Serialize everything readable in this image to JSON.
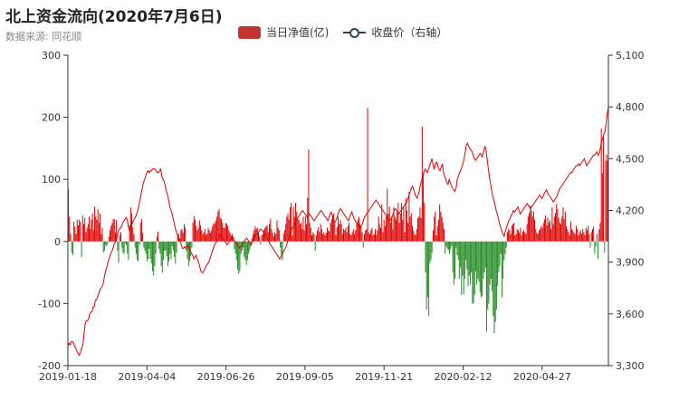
{
  "title": "北上资金流向(2020年7月6日)",
  "subtitle": "数据来源: 同花顺",
  "legend": {
    "bar_label": "当日净值(亿)",
    "line_label": "收盘价（右轴）"
  },
  "chart_data": {
    "type": "bar",
    "title": "北上资金流向(2020年7月6日)",
    "x_labels": [
      "2019-01-18",
      "2019-04-04",
      "2019-06-26",
      "2019-09-05",
      "2019-11-21",
      "2020-02-12",
      "2020-04-27"
    ],
    "y_left": {
      "min": -200,
      "max": 300,
      "ticks": [
        "300",
        "200",
        "100",
        "0",
        "-100",
        "-200"
      ]
    },
    "y_right": {
      "min": 3300,
      "max": 5100,
      "ticks": [
        "5,100",
        "4,800",
        "4,500",
        "4,200",
        "3,900",
        "3,600",
        "3,300"
      ]
    },
    "series": [
      {
        "name": "当日净值(亿)",
        "type": "bar",
        "positive_color": "#dd0000",
        "negative_color": "#228b22",
        "values": [
          84,
          40,
          12,
          -18,
          -22,
          32,
          24,
          12,
          35,
          26,
          35,
          32,
          -25,
          42,
          28,
          38,
          15,
          22,
          28,
          40,
          20,
          35,
          45,
          18,
          56,
          40,
          35,
          52,
          30,
          45,
          12,
          22,
          -18,
          -15,
          -6,
          -8,
          -3,
          8,
          18,
          25,
          30,
          36,
          36,
          15,
          35,
          -15,
          -35,
          10,
          15,
          -10,
          -18,
          -20,
          -3,
          -6,
          -20,
          -30,
          26,
          55,
          45,
          23,
          12,
          -10,
          -20,
          -30,
          -32,
          -5,
          30,
          36,
          14,
          -10,
          -15,
          -20,
          -32,
          -28,
          -12,
          -28,
          -35,
          -48,
          -55,
          -40,
          -20,
          8,
          16,
          -12,
          -20,
          -40,
          -50,
          -30,
          -15,
          -15,
          -24,
          -40,
          -32,
          -20,
          -28,
          -8,
          -14,
          -25,
          -36,
          -18,
          10,
          13,
          5,
          18,
          20,
          14,
          28,
          22,
          -15,
          -28,
          -40,
          -32,
          -24,
          -10,
          30,
          41,
          35,
          25,
          18,
          22,
          34,
          26,
          18,
          12,
          15,
          20,
          10,
          12,
          22,
          18,
          14,
          18,
          25,
          30,
          28,
          34,
          40,
          48,
          52,
          38,
          36,
          30,
          22,
          22,
          30,
          28,
          25,
          18,
          14,
          10,
          12,
          8,
          -12,
          -20,
          -30,
          -45,
          -52,
          -48,
          -20,
          -15,
          -10,
          -25,
          -30,
          -38,
          -30,
          -20,
          -14,
          -8,
          5,
          12,
          18,
          25,
          20,
          22,
          14,
          8,
          -5,
          10,
          12,
          18,
          22,
          24,
          26,
          15,
          28,
          36,
          20,
          14,
          8,
          15,
          12,
          34,
          22,
          18,
          -10,
          -22,
          -30,
          12,
          18,
          28,
          40,
          45,
          35,
          55,
          62,
          10,
          56,
          40,
          62,
          48,
          36,
          35,
          28,
          30,
          20,
          40,
          18,
          40,
          28,
          70,
          148,
          30,
          22,
          10,
          15,
          12,
          -15,
          10,
          18,
          23,
          15,
          28,
          20,
          12,
          15,
          10,
          14,
          22,
          18,
          16,
          30,
          36,
          42,
          45,
          30,
          10,
          23,
          40,
          28,
          35,
          28,
          12,
          20,
          18,
          22,
          15,
          25,
          30,
          12,
          10,
          15,
          20,
          12,
          18,
          30,
          35,
          40,
          28,
          25,
          15,
          -10,
          12,
          18,
          20,
          215,
          15,
          12,
          18,
          22,
          10,
          12,
          20,
          10,
          18,
          40,
          28,
          22,
          60,
          15,
          35,
          25,
          40,
          85,
          45,
          56,
          30,
          40,
          20,
          55,
          40,
          35,
          48,
          62,
          30,
          45,
          62,
          35,
          55,
          15,
          70,
          50,
          30,
          80,
          40,
          45,
          25,
          18,
          12,
          10,
          20,
          38,
          40,
          55,
          38,
          185,
          110,
          62,
          -50,
          -110,
          -90,
          -120,
          -35,
          -30,
          -18,
          18,
          40,
          48,
          10,
          25,
          35,
          60,
          48,
          40,
          30,
          20,
          -20,
          -8,
          -12,
          -14,
          -20,
          -12,
          -7,
          -50,
          -70,
          -60,
          -10,
          -22,
          -30,
          -60,
          -42,
          -86,
          -55,
          -85,
          -60,
          -30,
          -45,
          -72,
          -55,
          -70,
          -50,
          -100,
          -100,
          -86,
          -48,
          -70,
          -60,
          -65,
          -82,
          -90,
          -88,
          -60,
          -50,
          -42,
          -145,
          -110,
          -100,
          -70,
          -60,
          -80,
          -120,
          -148,
          -130,
          -110,
          -72,
          -50,
          -40,
          -20,
          -90,
          -60,
          -30,
          -20,
          -10,
          15,
          20,
          18,
          12,
          25,
          28,
          30,
          10,
          12,
          20,
          18,
          14,
          22,
          10,
          16,
          18,
          15,
          12,
          28,
          40,
          46,
          58,
          50,
          40,
          48,
          35,
          20,
          14,
          12,
          18,
          20,
          25,
          22,
          30,
          36,
          42,
          26,
          38,
          30,
          34,
          20,
          55,
          28,
          40,
          46,
          60,
          52,
          38,
          30,
          28,
          40,
          55,
          36,
          48,
          25,
          20,
          15,
          10,
          32,
          20,
          18,
          14,
          12,
          25,
          20,
          10,
          15,
          18,
          12,
          20,
          15,
          10,
          22,
          18,
          25,
          12,
          -10,
          15,
          20,
          24,
          -20,
          -8,
          12,
          -28,
          20,
          30,
          182,
          110,
          170,
          -18,
          130,
          140,
          130
        ]
      },
      {
        "name": "收盘价（右轴）",
        "type": "line",
        "color": "#dd0000",
        "values": [
          3410,
          3430,
          3420,
          3440,
          3440,
          3430,
          3410,
          3400,
          3380,
          3370,
          3360,
          3380,
          3400,
          3420,
          3480,
          3540,
          3560,
          3560,
          3570,
          3600,
          3610,
          3610,
          3640,
          3640,
          3680,
          3680,
          3700,
          3720,
          3740,
          3750,
          3760,
          3780,
          3820,
          3850,
          3870,
          3900,
          3920,
          3940,
          3960,
          3970,
          4000,
          4010,
          4030,
          4040,
          4080,
          4090,
          4100,
          4110,
          4130,
          4140,
          4150,
          4160,
          4140,
          4100,
          4080,
          4110,
          4120,
          4140,
          4150,
          4160,
          4180,
          4200,
          4230,
          4260,
          4300,
          4330,
          4360,
          4380,
          4400,
          4420,
          4430,
          4420,
          4430,
          4430,
          4440,
          4440,
          4440,
          4430,
          4420,
          4420,
          4430,
          4440,
          4400,
          4380,
          4370,
          4340,
          4310,
          4290,
          4260,
          4220,
          4200,
          4180,
          4150,
          4120,
          4090,
          4070,
          4050,
          4030,
          4020,
          4000,
          3980,
          3980,
          3990,
          3980,
          3990,
          4000,
          3980,
          3960,
          3950,
          3940,
          3920,
          3930,
          3940,
          3920,
          3900,
          3880,
          3850,
          3840,
          3840,
          3850,
          3870,
          3880,
          3890,
          3900,
          3920,
          3940,
          3960,
          3980,
          4000,
          4010,
          4020,
          4030,
          4040,
          4060,
          4050,
          4040,
          4030,
          4020,
          4010,
          4000,
          4010,
          4020,
          4030,
          4040,
          4040,
          4030,
          4020,
          4010,
          4000,
          3990,
          3980,
          3990,
          4000,
          4010,
          4020,
          4030,
          4040,
          4030,
          4020,
          4010,
          4000,
          4020,
          4030,
          4050,
          4060,
          4060,
          4070,
          4080,
          4090,
          4090,
          4080,
          4070,
          4060,
          4050,
          4040,
          4030,
          4010,
          4000,
          3990,
          3980,
          3970,
          3960,
          3950,
          3940,
          3930,
          3920,
          3930,
          3940,
          3960,
          3970,
          3980,
          4000,
          4020,
          4040,
          4060,
          4080,
          4100,
          4110,
          4120,
          4140,
          4150,
          4160,
          4170,
          4180,
          4190,
          4200,
          4190,
          4180,
          4170,
          4160,
          4170,
          4180,
          4170,
          4160,
          4150,
          4140,
          4150,
          4160,
          4170,
          4180,
          4190,
          4200,
          4190,
          4180,
          4170,
          4160,
          4150,
          4140,
          4160,
          4180,
          4190,
          4170,
          4150,
          4130,
          4140,
          4160,
          4180,
          4200,
          4210,
          4200,
          4190,
          4180,
          4170,
          4160,
          4150,
          4140,
          4160,
          4180,
          4190,
          4170,
          4150,
          4140,
          4130,
          4120,
          4110,
          4100,
          4110,
          4120,
          4140,
          4160,
          4170,
          4180,
          4190,
          4200,
          4210,
          4220,
          4230,
          4240,
          4250,
          4260,
          4250,
          4240,
          4230,
          4220,
          4210,
          4200,
          4190,
          4180,
          4170,
          4160,
          4150,
          4140,
          4150,
          4160,
          4180,
          4200,
          4210,
          4200,
          4190,
          4180,
          4190,
          4200,
          4210,
          4220,
          4230,
          4240,
          4250,
          4270,
          4290,
          4310,
          4330,
          4340,
          4320,
          4300,
          4280,
          4270,
          4290,
          4320,
          4350,
          4380,
          4400,
          4420,
          4440,
          4430,
          4420,
          4440,
          4460,
          4480,
          4500,
          4460,
          4440,
          4470,
          4480,
          4460,
          4440,
          4430,
          4450,
          4470,
          4420,
          4400,
          4380,
          4360,
          4350,
          4380,
          4360,
          4340,
          4330,
          4320,
          4310,
          4330,
          4380,
          4400,
          4420,
          4430,
          4450,
          4470,
          4500,
          4540,
          4580,
          4590,
          4570,
          4560,
          4550,
          4540,
          4520,
          4500,
          4490,
          4500,
          4510,
          4520,
          4530,
          4520,
          4510,
          4540,
          4570,
          4560,
          4500,
          4450,
          4400,
          4360,
          4320,
          4280,
          4260,
          4230,
          4200,
          4180,
          4150,
          4120,
          4100,
          4080,
          4060,
          4050,
          4080,
          4100,
          4120,
          4140,
          4150,
          4170,
          4180,
          4200,
          4190,
          4200,
          4210,
          4220,
          4200,
          4180,
          4190,
          4200,
          4210,
          4220,
          4230,
          4240,
          4230,
          4220,
          4210,
          4220,
          4230,
          4240,
          4250,
          4260,
          4270,
          4280,
          4290,
          4280,
          4270,
          4280,
          4300,
          4310,
          4320,
          4300,
          4290,
          4280,
          4270,
          4260,
          4250,
          4260,
          4270,
          4280,
          4300,
          4320,
          4330,
          4340,
          4350,
          4360,
          4370,
          4380,
          4390,
          4400,
          4410,
          4420,
          4420,
          4430,
          4440,
          4450,
          4460,
          4460,
          4470,
          4460,
          4470,
          4480,
          4490,
          4500,
          4480,
          4460,
          4470,
          4480,
          4490,
          4500,
          4510,
          4520,
          4520,
          4530,
          4540,
          4520,
          4530,
          4560,
          4600,
          4620,
          4640,
          4660,
          4700,
          4760,
          4800
        ]
      }
    ]
  }
}
